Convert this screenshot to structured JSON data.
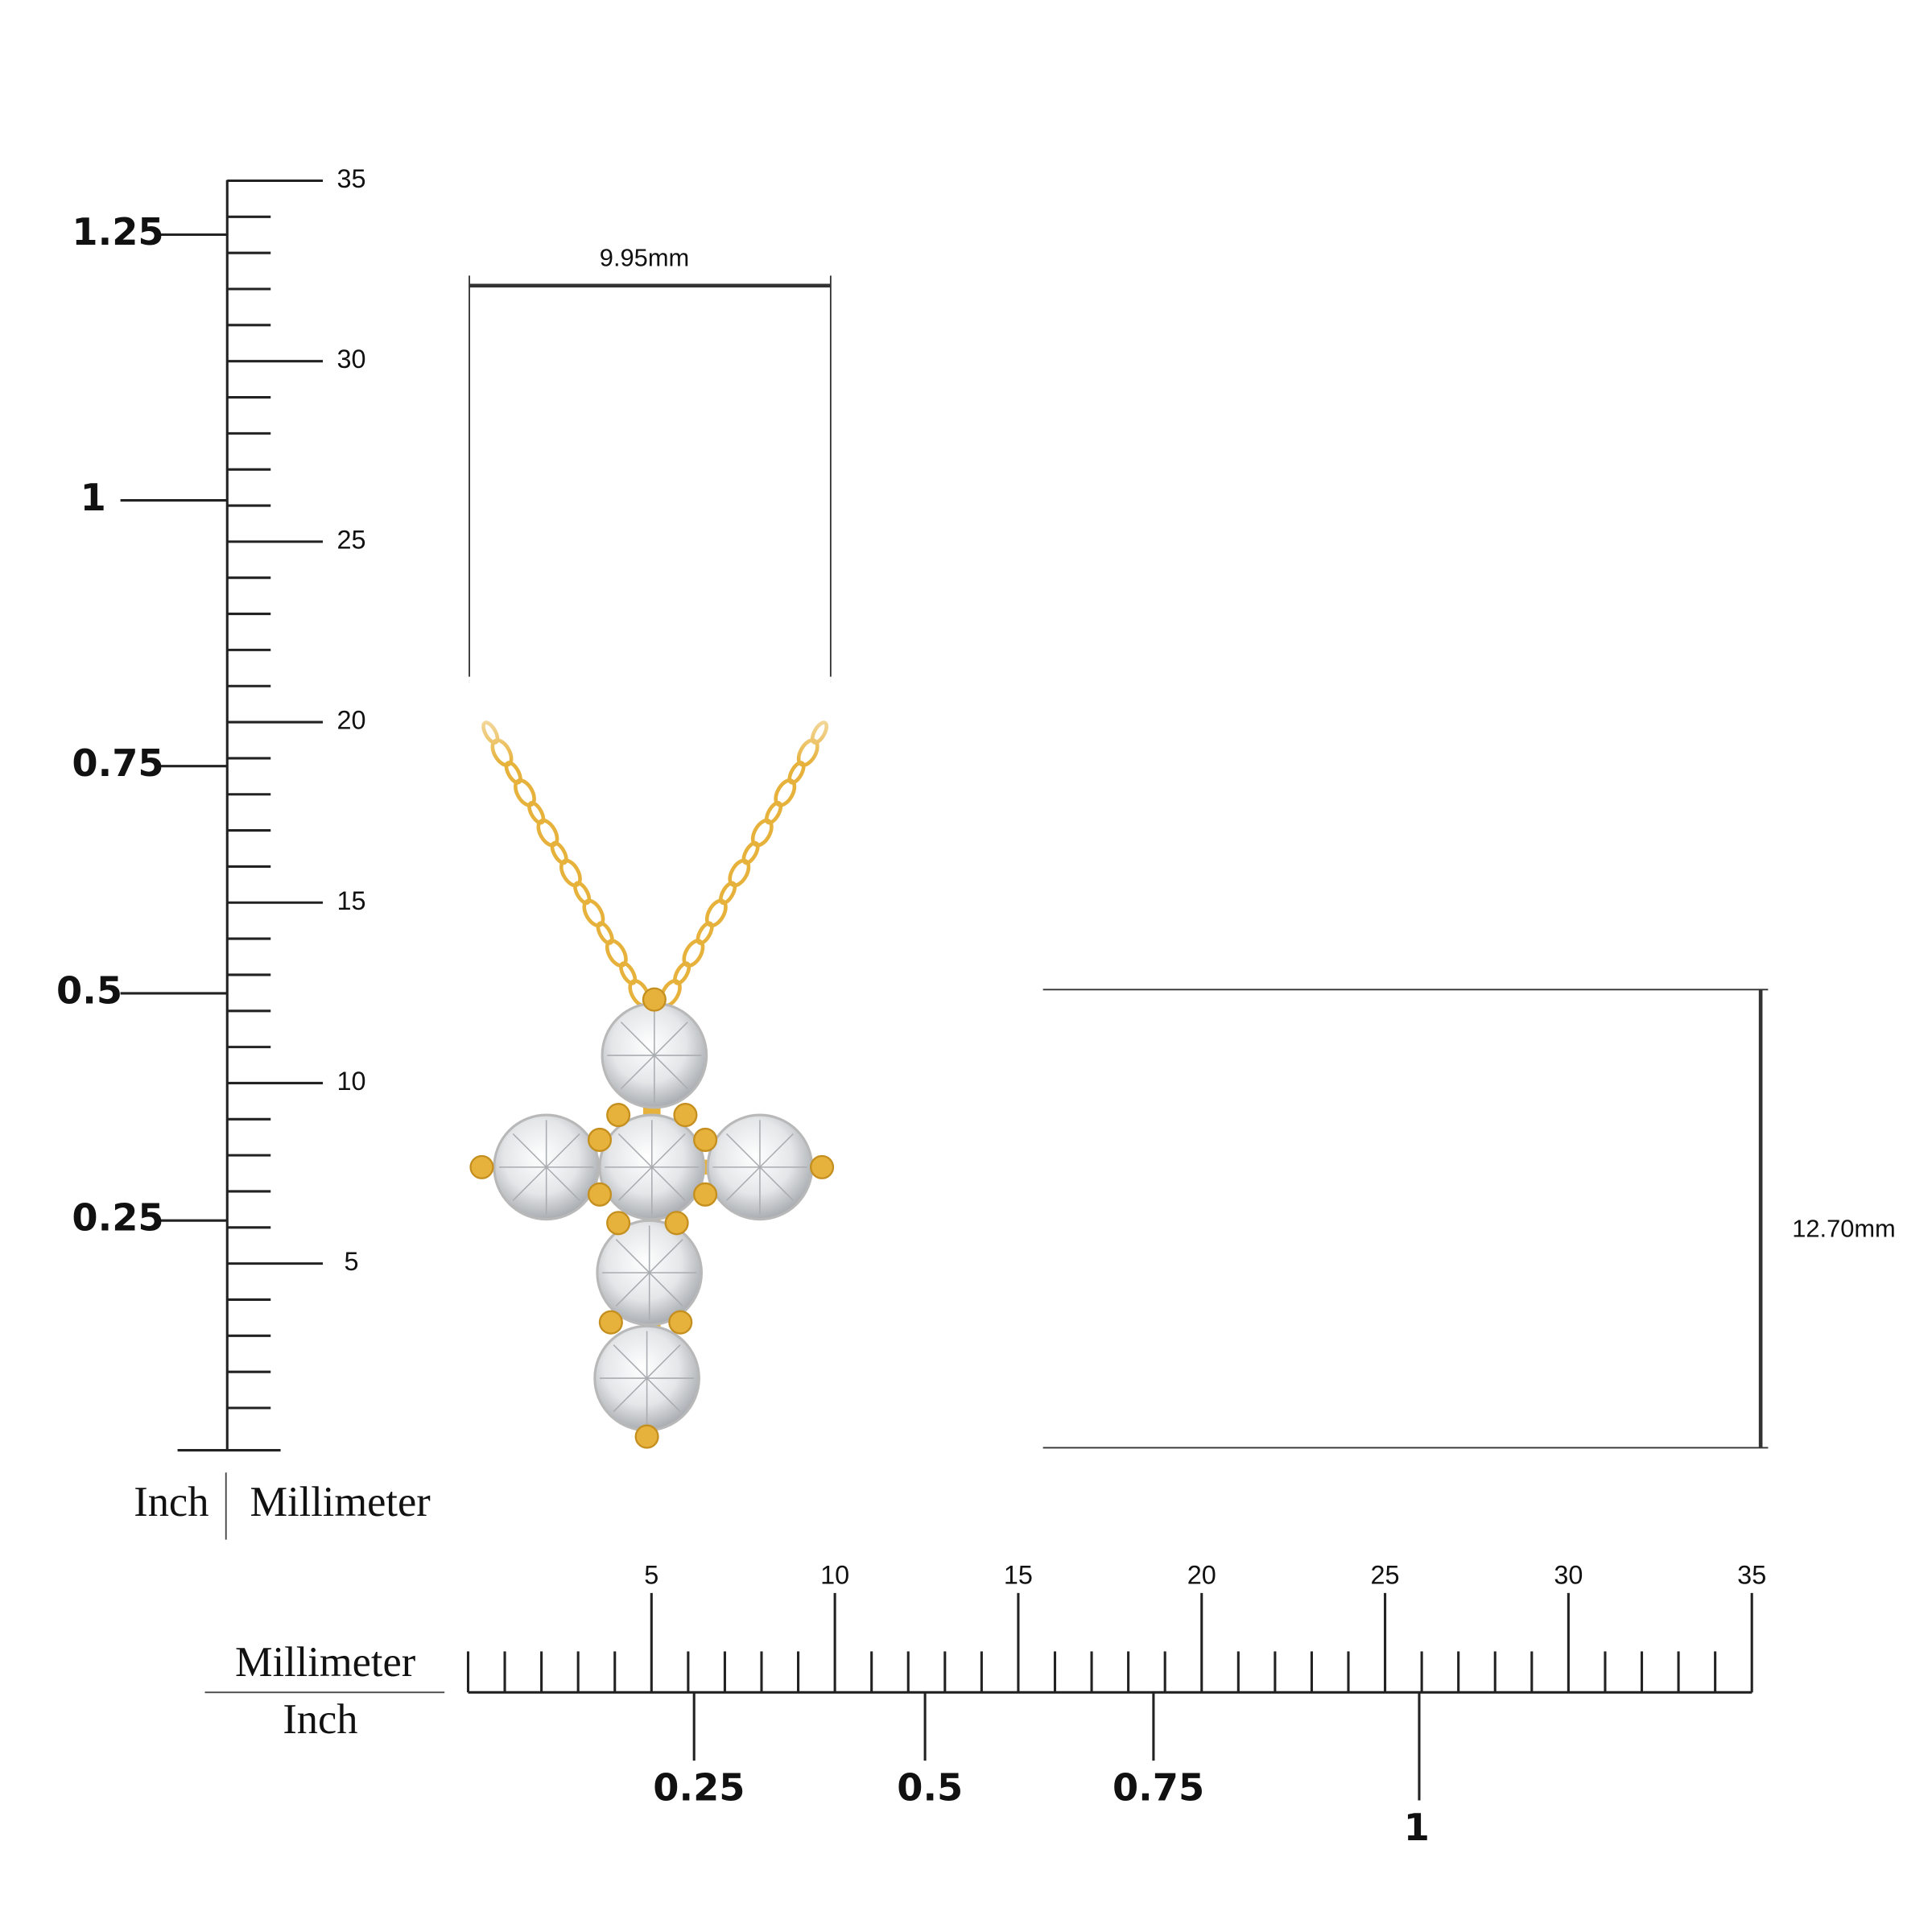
{
  "vertical_ruler": {
    "inch_labels": [
      "1.25",
      "1",
      "0.75",
      "0.5",
      "0.25"
    ],
    "mm_labels": [
      "35",
      "30",
      "25",
      "20",
      "15",
      "10",
      "5"
    ],
    "unit_inch": "Inch",
    "unit_mm": "Millimeter"
  },
  "horizontal_ruler": {
    "mm_labels": [
      "5",
      "10",
      "15",
      "20",
      "25",
      "30",
      "35"
    ],
    "inch_labels": [
      "0.25",
      "0.5",
      "0.75",
      "1"
    ],
    "unit_mm": "Millimeter",
    "unit_inch": "Inch"
  },
  "dimensions": {
    "width": "9.95mm",
    "height": "12.70mm"
  }
}
